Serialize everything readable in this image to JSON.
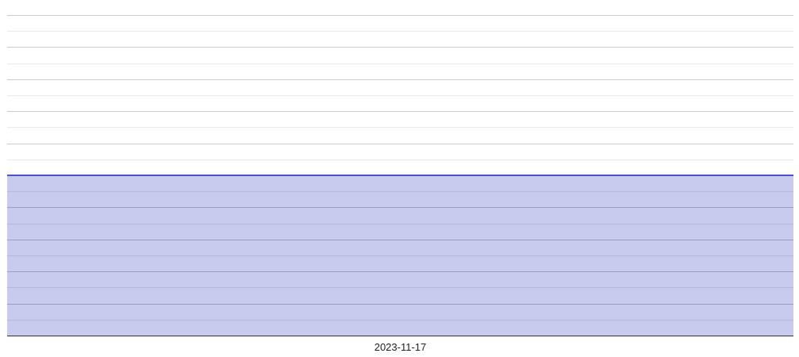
{
  "chart_data": {
    "type": "area",
    "title": "",
    "xlabel": "",
    "ylabel": "",
    "x": [
      "2023-11-17"
    ],
    "series": [
      {
        "values": [
          5
        ]
      }
    ],
    "ylim": [
      0,
      10
    ],
    "y_gridlines": [
      0,
      0.5,
      1,
      1.5,
      2,
      2.5,
      3,
      3.5,
      4,
      4.5,
      5,
      5.5,
      6,
      6.5,
      7,
      7.5,
      8,
      8.5,
      9,
      9.5,
      10
    ],
    "grid": true,
    "legend": "none",
    "colors": {
      "line": "#4a56c8",
      "fill": "#c8cbee",
      "major_grid": "#cccccc",
      "minor_grid": "#ebebeb",
      "axis": "#333333"
    }
  }
}
